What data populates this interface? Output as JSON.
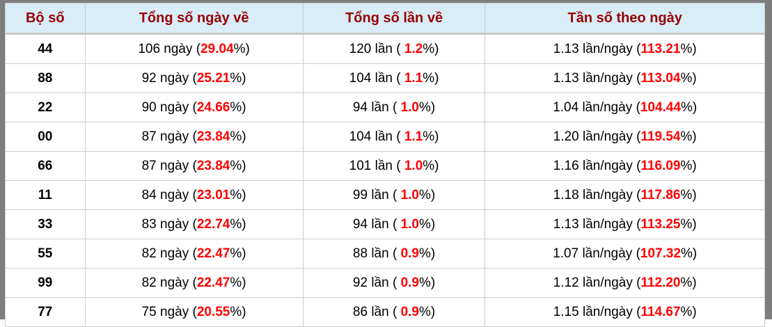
{
  "table": {
    "headers": {
      "col1": "Bộ số",
      "col2": "Tổng số ngày về",
      "col3": "Tổng số lần về",
      "col4": "Tần số theo ngày"
    },
    "colors": {
      "frame_gray": "#7d7d7d",
      "header_bg": "#d9edf7",
      "header_text": "#990000",
      "highlight_red": "#ff0000",
      "cell_border": "#cccccc"
    },
    "rows": [
      {
        "so": "44",
        "ngay_pre": "106 ngày (",
        "ngay_pct": "29.04",
        "ngay_post": "%)",
        "lan_pre": "120 lần ( ",
        "lan_pct": "1.2",
        "lan_post": "%)",
        "tan_pre": "1.13 lần/ngày (",
        "tan_pct": "113.21",
        "tan_post": "%)"
      },
      {
        "so": "88",
        "ngay_pre": "92 ngày (",
        "ngay_pct": "25.21",
        "ngay_post": "%)",
        "lan_pre": "104 lần ( ",
        "lan_pct": "1.1",
        "lan_post": "%)",
        "tan_pre": "1.13 lần/ngày (",
        "tan_pct": "113.04",
        "tan_post": "%)"
      },
      {
        "so": "22",
        "ngay_pre": "90 ngày (",
        "ngay_pct": "24.66",
        "ngay_post": "%)",
        "lan_pre": "94 lần ( ",
        "lan_pct": "1.0",
        "lan_post": "%)",
        "tan_pre": "1.04 lần/ngày (",
        "tan_pct": "104.44",
        "tan_post": "%)"
      },
      {
        "so": "00",
        "ngay_pre": "87 ngày (",
        "ngay_pct": "23.84",
        "ngay_post": "%)",
        "lan_pre": "104 lần ( ",
        "lan_pct": "1.1",
        "lan_post": "%)",
        "tan_pre": "1.20 lần/ngày (",
        "tan_pct": "119.54",
        "tan_post": "%)"
      },
      {
        "so": "66",
        "ngay_pre": "87 ngày (",
        "ngay_pct": "23.84",
        "ngay_post": "%)",
        "lan_pre": "101 lần ( ",
        "lan_pct": "1.0",
        "lan_post": "%)",
        "tan_pre": "1.16 lần/ngày (",
        "tan_pct": "116.09",
        "tan_post": "%)"
      },
      {
        "so": "11",
        "ngay_pre": "84 ngày (",
        "ngay_pct": "23.01",
        "ngay_post": "%)",
        "lan_pre": "99 lần ( ",
        "lan_pct": "1.0",
        "lan_post": "%)",
        "tan_pre": "1.18 lần/ngày (",
        "tan_pct": "117.86",
        "tan_post": "%)"
      },
      {
        "so": "33",
        "ngay_pre": "83 ngày (",
        "ngay_pct": "22.74",
        "ngay_post": "%)",
        "lan_pre": "94 lần ( ",
        "lan_pct": "1.0",
        "lan_post": "%)",
        "tan_pre": "1.13 lần/ngày (",
        "tan_pct": "113.25",
        "tan_post": "%)"
      },
      {
        "so": "55",
        "ngay_pre": "82 ngày (",
        "ngay_pct": "22.47",
        "ngay_post": "%)",
        "lan_pre": "88 lần ( ",
        "lan_pct": "0.9",
        "lan_post": "%)",
        "tan_pre": "1.07 lần/ngày (",
        "tan_pct": "107.32",
        "tan_post": "%)"
      },
      {
        "so": "99",
        "ngay_pre": "82 ngày (",
        "ngay_pct": "22.47",
        "ngay_post": "%)",
        "lan_pre": "92 lần ( ",
        "lan_pct": "0.9",
        "lan_post": "%)",
        "tan_pre": "1.12 lần/ngày (",
        "tan_pct": "112.20",
        "tan_post": "%)"
      },
      {
        "so": "77",
        "ngay_pre": "75 ngày (",
        "ngay_pct": "20.55",
        "ngay_post": "%)",
        "lan_pre": "86 lần ( ",
        "lan_pct": "0.9",
        "lan_post": "%)",
        "tan_pre": "1.15 lần/ngày (",
        "tan_pct": "114.67",
        "tan_post": "%)"
      }
    ]
  },
  "chart_data": {
    "type": "table",
    "columns": [
      "Bộ số",
      "Tổng số ngày về",
      "Tổng số lần về",
      "Tần số theo ngày"
    ],
    "rows": [
      [
        "44",
        "106 ngày (29.04%)",
        "120 lần ( 1.2%)",
        "1.13 lần/ngày (113.21%)"
      ],
      [
        "88",
        "92 ngày (25.21%)",
        "104 lần ( 1.1%)",
        "1.13 lần/ngày (113.04%)"
      ],
      [
        "22",
        "90 ngày (24.66%)",
        "94 lần ( 1.0%)",
        "1.04 lần/ngày (104.44%)"
      ],
      [
        "00",
        "87 ngày (23.84%)",
        "104 lần ( 1.1%)",
        "1.20 lần/ngày (119.54%)"
      ],
      [
        "66",
        "87 ngày (23.84%)",
        "101 lần ( 1.0%)",
        "1.16 lần/ngày (116.09%)"
      ],
      [
        "11",
        "84 ngày (23.01%)",
        "99 lần ( 1.0%)",
        "1.18 lần/ngày (117.86%)"
      ],
      [
        "33",
        "83 ngày (22.74%)",
        "94 lần ( 1.0%)",
        "1.13 lần/ngày (113.25%)"
      ],
      [
        "55",
        "82 ngày (22.47%)",
        "88 lần ( 0.9%)",
        "1.07 lần/ngày (107.32%)"
      ],
      [
        "99",
        "82 ngày (22.47%)",
        "92 lần ( 0.9%)",
        "1.12 lần/ngày (112.20%)"
      ],
      [
        "77",
        "75 ngày (20.55%)",
        "86 lần ( 0.9%)",
        "1.15 lần/ngày (114.67%)"
      ]
    ]
  }
}
